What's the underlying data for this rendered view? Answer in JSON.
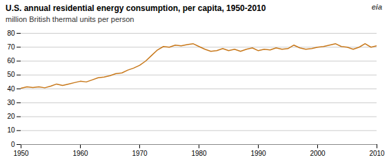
{
  "chart_data": {
    "type": "line",
    "title": "U.S. annual residential energy consumption, per capita, 1950-2010",
    "subtitle": "million British thermal units per person",
    "annotations": [
      "eia"
    ],
    "color": "#C8781A",
    "grid": true,
    "xlim": [
      1950,
      2010
    ],
    "xticks": [
      1950,
      1960,
      1970,
      1980,
      1990,
      2000,
      2010
    ],
    "ylim": [
      0,
      80
    ],
    "yticks": [
      0,
      10,
      20,
      30,
      40,
      50,
      60,
      70,
      80
    ],
    "x": [
      1950,
      1951,
      1952,
      1953,
      1954,
      1955,
      1956,
      1957,
      1958,
      1959,
      1960,
      1961,
      1962,
      1963,
      1964,
      1965,
      1966,
      1967,
      1968,
      1969,
      1970,
      1971,
      1972,
      1973,
      1974,
      1975,
      1976,
      1977,
      1978,
      1979,
      1980,
      1981,
      1982,
      1983,
      1984,
      1985,
      1986,
      1987,
      1988,
      1989,
      1990,
      1991,
      1992,
      1993,
      1994,
      1995,
      1996,
      1997,
      1998,
      1999,
      2000,
      2001,
      2002,
      2003,
      2004,
      2005,
      2006,
      2007,
      2008,
      2009,
      2010
    ],
    "values": [
      40.5,
      41.5,
      41.0,
      41.5,
      40.8,
      42.0,
      43.5,
      42.5,
      43.5,
      44.5,
      45.5,
      45.0,
      46.5,
      48.0,
      48.5,
      49.5,
      51.0,
      51.5,
      53.5,
      55.0,
      57.0,
      60.0,
      64.0,
      68.0,
      70.5,
      70.0,
      71.5,
      71.0,
      71.8,
      72.5,
      70.5,
      68.5,
      67.0,
      67.5,
      69.0,
      67.5,
      68.5,
      67.0,
      68.5,
      69.5,
      67.5,
      68.5,
      68.0,
      69.5,
      68.5,
      69.0,
      71.5,
      69.5,
      68.5,
      69.0,
      70.0,
      70.5,
      71.5,
      72.5,
      70.5,
      70.0,
      68.5,
      70.0,
      72.5,
      70.0,
      71.0
    ]
  }
}
